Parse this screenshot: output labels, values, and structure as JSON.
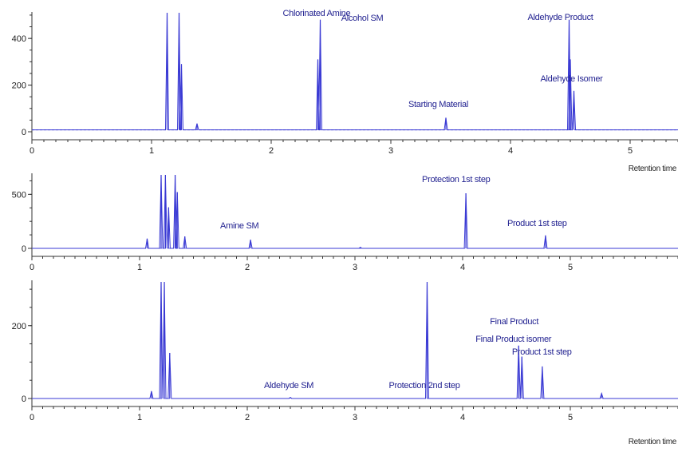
{
  "chart_data": [
    {
      "type": "line",
      "xlabel": "Retention time",
      "xlim": [
        0,
        5.4
      ],
      "ylim": [
        -20,
        510
      ],
      "x_ticks": [
        0,
        1,
        2,
        3,
        4,
        5
      ],
      "y_ticks": [
        0,
        200,
        400
      ],
      "baseline": 8,
      "color": "#3a3ad4",
      "peaks": [
        {
          "x": 1.13,
          "y": 510,
          "label": ""
        },
        {
          "x": 1.23,
          "y": 510,
          "label": ""
        },
        {
          "x": 1.25,
          "y": 290,
          "label": ""
        },
        {
          "x": 1.38,
          "y": 35,
          "label": ""
        },
        {
          "x": 2.39,
          "y": 310,
          "label": ""
        },
        {
          "x": 2.41,
          "y": 480,
          "label": "Chlorinated Amine"
        },
        {
          "x": 3.46,
          "y": 60,
          "label": "Starting Material"
        },
        {
          "x": 4.49,
          "y": 480,
          "label": "Aldehyde Product"
        },
        {
          "x": 4.5,
          "y": 310,
          "label": ""
        },
        {
          "x": 4.53,
          "y": 175,
          "label": "Aldehyde Isomer"
        }
      ]
    },
    {
      "type": "line",
      "xlabel": "",
      "xlim": [
        0,
        6.0
      ],
      "ylim": [
        -60,
        680
      ],
      "x_ticks": [
        0,
        1,
        2,
        3,
        4,
        5
      ],
      "y_ticks": [
        0,
        500
      ],
      "baseline": 0,
      "color": "#3a3ad4",
      "peaks": [
        {
          "x": 1.07,
          "y": 90,
          "label": ""
        },
        {
          "x": 1.2,
          "y": 680,
          "label": ""
        },
        {
          "x": 1.24,
          "y": 680,
          "label": ""
        },
        {
          "x": 1.27,
          "y": 380,
          "label": ""
        },
        {
          "x": 1.33,
          "y": 680,
          "label": ""
        },
        {
          "x": 1.35,
          "y": 520,
          "label": ""
        },
        {
          "x": 1.42,
          "y": 110,
          "label": ""
        },
        {
          "x": 2.03,
          "y": 80,
          "label": "Amine SM"
        },
        {
          "x": 3.05,
          "y": 10,
          "label": "Alcohol SM"
        },
        {
          "x": 4.03,
          "y": 510,
          "label": "Protection 1st step"
        },
        {
          "x": 4.77,
          "y": 120,
          "label": "Product 1st step"
        }
      ]
    },
    {
      "type": "line",
      "xlabel": "Retention time",
      "xlim": [
        0,
        6.0
      ],
      "ylim": [
        -40,
        320
      ],
      "x_ticks": [
        0,
        1,
        2,
        3,
        4,
        5
      ],
      "y_ticks": [
        0,
        200
      ],
      "baseline": 0,
      "color": "#3a3ad4",
      "peaks": [
        {
          "x": 1.11,
          "y": 20,
          "label": ""
        },
        {
          "x": 1.2,
          "y": 320,
          "label": ""
        },
        {
          "x": 1.23,
          "y": 320,
          "label": ""
        },
        {
          "x": 1.28,
          "y": 125,
          "label": ""
        },
        {
          "x": 2.4,
          "y": 3,
          "label": "Aldehyde SM"
        },
        {
          "x": 3.67,
          "y": 320,
          "label": "Protection 2nd step"
        },
        {
          "x": 4.52,
          "y": 145,
          "label": "Final Product"
        },
        {
          "x": 4.55,
          "y": 115,
          "label": "Final Product isomer"
        },
        {
          "x": 4.74,
          "y": 88,
          "label": "Product 1st step"
        },
        {
          "x": 5.29,
          "y": 14,
          "label": ""
        }
      ]
    }
  ]
}
